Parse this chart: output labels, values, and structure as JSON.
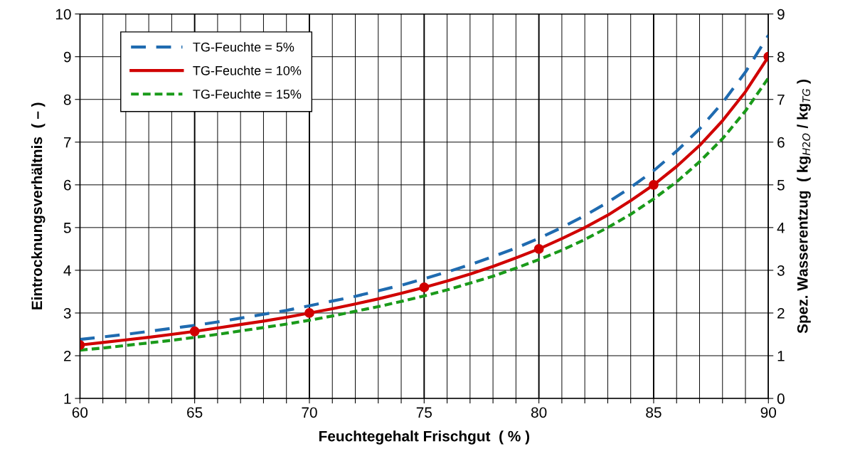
{
  "chart_data": {
    "type": "line",
    "xlabel": "Feuchtegehalt Frischgut  ( % )",
    "ylabel": "Eintrocknungsverhältnis  ( – )",
    "y2label": "Spez. Wasserentzug  ( kg$_{H2O}$ / kg$_{TG}$ )",
    "x": [
      60,
      61,
      62,
      63,
      64,
      65,
      66,
      67,
      68,
      69,
      70,
      71,
      72,
      73,
      74,
      75,
      76,
      77,
      78,
      79,
      80,
      81,
      82,
      83,
      84,
      85,
      86,
      87,
      88,
      89,
      90
    ],
    "series": [
      {
        "name": "TG-Feuchte = 5%",
        "color": "#1f6bb0",
        "line_style": "dashed",
        "values": [
          2.38,
          2.44,
          2.5,
          2.57,
          2.64,
          2.71,
          2.79,
          2.88,
          2.97,
          3.06,
          3.17,
          3.28,
          3.39,
          3.52,
          3.65,
          3.8,
          3.96,
          4.13,
          4.32,
          4.52,
          4.75,
          5,
          5.28,
          5.59,
          5.94,
          6.33,
          6.79,
          7.31,
          7.92,
          8.64,
          9.5
        ]
      },
      {
        "name": "TG-Feuchte = 10%",
        "color": "#d00000",
        "line_style": "solid",
        "values": [
          2.25,
          2.31,
          2.37,
          2.43,
          2.5,
          2.57,
          2.65,
          2.73,
          2.81,
          2.9,
          3,
          3.1,
          3.21,
          3.33,
          3.46,
          3.6,
          3.75,
          3.91,
          4.09,
          4.29,
          4.5,
          4.74,
          5,
          5.29,
          5.63,
          6,
          6.43,
          6.92,
          7.5,
          8.18,
          9
        ]
      },
      {
        "name": "TG-Feuchte = 15%",
        "color": "#1a9a1a",
        "line_style": "dotted",
        "values": [
          2.13,
          2.18,
          2.24,
          2.3,
          2.36,
          2.43,
          2.5,
          2.58,
          2.66,
          2.74,
          2.83,
          2.93,
          3.04,
          3.15,
          3.27,
          3.4,
          3.54,
          3.7,
          3.86,
          4.05,
          4.25,
          4.47,
          4.72,
          5,
          5.31,
          5.67,
          6.07,
          6.54,
          7.08,
          7.73,
          8.5
        ]
      },
      {
        "type": "scatter",
        "color": "#d00000",
        "marker": "circle",
        "x": [
          60,
          65,
          70,
          75,
          80,
          85,
          90
        ],
        "values": [
          2.25,
          2.57,
          3,
          3.6,
          4.5,
          6,
          9
        ]
      }
    ],
    "xlim": [
      60,
      90
    ],
    "xticks": [
      60,
      {
        "value": 61,
        "label": null
      },
      {
        "value": 62,
        "label": null
      },
      {
        "value": 63,
        "label": null
      },
      {
        "value": 64,
        "label": null
      },
      65,
      {
        "value": 66,
        "label": null
      },
      {
        "value": 67,
        "label": null
      },
      {
        "value": 68,
        "label": null
      },
      {
        "value": 69,
        "label": null
      },
      70,
      {
        "value": 71,
        "label": null
      },
      {
        "value": 72,
        "label": null
      },
      {
        "value": 73,
        "label": null
      },
      {
        "value": 74,
        "label": null
      },
      75,
      {
        "value": 76,
        "label": null
      },
      {
        "value": 77,
        "label": null
      },
      {
        "value": 78,
        "label": null
      },
      {
        "value": 79,
        "label": null
      },
      80,
      {
        "value": 81,
        "label": null
      },
      {
        "value": 82,
        "label": null
      },
      {
        "value": 83,
        "label": null
      },
      {
        "value": 84,
        "label": null
      },
      85,
      {
        "value": 86,
        "label": null
      },
      {
        "value": 87,
        "label": null
      },
      {
        "value": 88,
        "label": null
      },
      {
        "value": 89,
        "label": null
      },
      90
    ],
    "ylim": [
      1,
      10
    ],
    "yticks": [
      1,
      2,
      3,
      4,
      5,
      6,
      7,
      8,
      9,
      10
    ],
    "y2lim": [
      0,
      9
    ],
    "y2ticks": [
      0,
      1,
      2,
      3,
      4,
      5,
      6,
      7,
      8,
      9
    ],
    "grid": true,
    "legend": "top left"
  }
}
